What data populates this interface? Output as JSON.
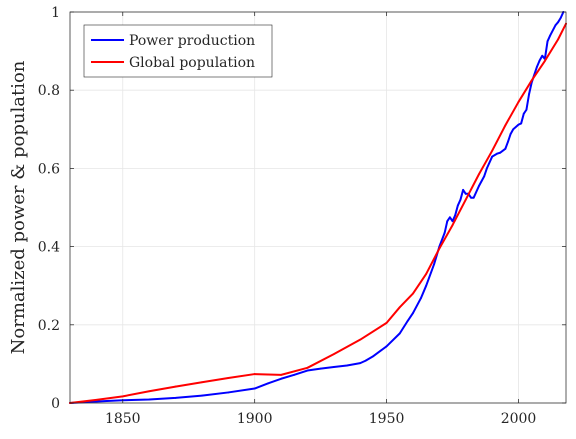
{
  "chart_data": {
    "type": "line",
    "title": "",
    "xlabel": "",
    "ylabel": "Normalized power & population",
    "xlim": [
      1830,
      2018
    ],
    "ylim": [
      0,
      1
    ],
    "grid": true,
    "legend_position": "top-left",
    "x_ticks": [
      1850,
      1900,
      1950,
      2000
    ],
    "y_ticks": [
      0,
      0.2,
      0.4,
      0.6,
      0.8,
      1
    ],
    "x_tick_labels": [
      "1850",
      "1900",
      "1950",
      "2000"
    ],
    "y_tick_labels": [
      "0",
      "0.2",
      "0.4",
      "0.6",
      "0.8",
      "1"
    ],
    "series": [
      {
        "name": "Power production",
        "color": "#0000ff",
        "x": [
          1830,
          1840,
          1850,
          1860,
          1870,
          1880,
          1890,
          1900,
          1905,
          1910,
          1915,
          1920,
          1925,
          1930,
          1935,
          1940,
          1942,
          1945,
          1948,
          1950,
          1955,
          1958,
          1960,
          1963,
          1965,
          1968,
          1970,
          1972,
          1973,
          1974,
          1975,
          1976,
          1977,
          1978,
          1979,
          1980,
          1981,
          1982,
          1983,
          1985,
          1987,
          1988,
          1990,
          1992,
          1993,
          1995,
          1996,
          1997,
          1998,
          2000,
          2001,
          2002,
          2003,
          2004,
          2005,
          2006,
          2007,
          2008,
          2009,
          2010,
          2011,
          2012,
          2014,
          2015,
          2016,
          2017
        ],
        "values": [
          0,
          0.004,
          0.007,
          0.009,
          0.013,
          0.019,
          0.027,
          0.037,
          0.05,
          0.062,
          0.072,
          0.083,
          0.088,
          0.092,
          0.096,
          0.102,
          0.108,
          0.12,
          0.135,
          0.145,
          0.178,
          0.21,
          0.23,
          0.268,
          0.3,
          0.355,
          0.4,
          0.435,
          0.465,
          0.475,
          0.465,
          0.48,
          0.505,
          0.52,
          0.545,
          0.535,
          0.535,
          0.525,
          0.525,
          0.555,
          0.58,
          0.6,
          0.63,
          0.638,
          0.64,
          0.65,
          0.668,
          0.688,
          0.7,
          0.712,
          0.715,
          0.74,
          0.75,
          0.79,
          0.82,
          0.84,
          0.86,
          0.876,
          0.888,
          0.88,
          0.925,
          0.94,
          0.966,
          0.974,
          0.985,
          1.0
        ]
      },
      {
        "name": "Global population",
        "color": "#ff0000",
        "x": [
          1830,
          1840,
          1850,
          1860,
          1870,
          1880,
          1890,
          1900,
          1910,
          1920,
          1930,
          1940,
          1950,
          1955,
          1960,
          1965,
          1970,
          1975,
          1980,
          1985,
          1990,
          1995,
          2000,
          2005,
          2010,
          2015,
          2018
        ],
        "values": [
          0,
          0.008,
          0.017,
          0.03,
          0.042,
          0.053,
          0.064,
          0.074,
          0.072,
          0.09,
          0.125,
          0.162,
          0.205,
          0.245,
          0.28,
          0.33,
          0.395,
          0.455,
          0.52,
          0.585,
          0.645,
          0.71,
          0.77,
          0.825,
          0.875,
          0.93,
          0.97
        ]
      }
    ]
  }
}
